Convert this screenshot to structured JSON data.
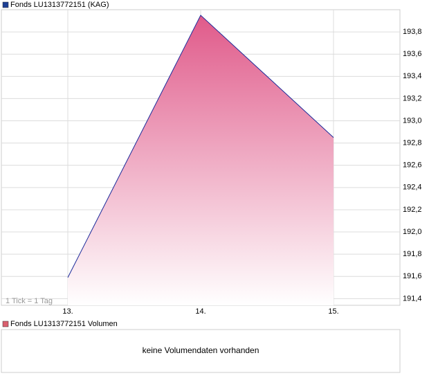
{
  "chart_data": {
    "type": "area",
    "title": "Fonds LU1313772151 (KAG)",
    "categories": [
      "13.",
      "14.",
      "15."
    ],
    "values": [
      191.59,
      193.95,
      192.85
    ],
    "color": "#1a2a9a",
    "fill_color": "#e05a8a",
    "legend_color": "#1c3f94",
    "ylim": [
      191.34,
      194.0
    ],
    "yticks": [
      {
        "value": 191.4,
        "label": "191,4"
      },
      {
        "value": 191.6,
        "label": "191,6"
      },
      {
        "value": 191.8,
        "label": "191,8"
      },
      {
        "value": 192.0,
        "label": "192,0"
      },
      {
        "value": 192.2,
        "label": "192,2"
      },
      {
        "value": 192.4,
        "label": "192,4"
      },
      {
        "value": 192.6,
        "label": "192,6"
      },
      {
        "value": 192.8,
        "label": "192,8"
      },
      {
        "value": 193.0,
        "label": "193,0"
      },
      {
        "value": 193.2,
        "label": "193,2"
      },
      {
        "value": 193.4,
        "label": "193,4"
      },
      {
        "value": 193.6,
        "label": "193,6"
      },
      {
        "value": 193.8,
        "label": "193,8"
      }
    ],
    "grid": true,
    "footnote": "1 Tick = 1 Tag"
  },
  "volume_panel": {
    "title": "Fonds LU1313772151 Volumen",
    "legend_color": "#d9606e",
    "message": "keine Volumendaten vorhanden"
  }
}
